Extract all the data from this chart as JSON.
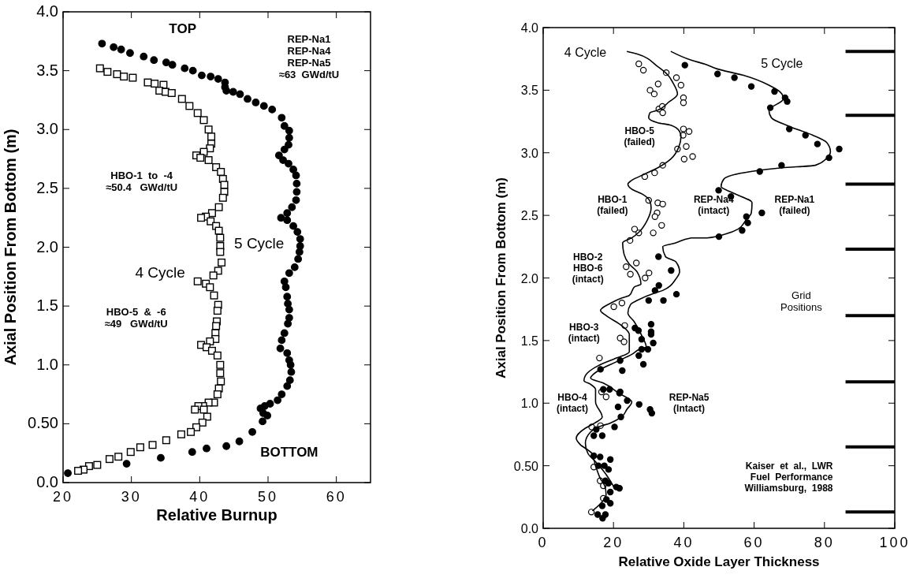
{
  "chart_data": [
    {
      "type": "scatter",
      "xlabel": "Relative Burnup",
      "ylabel": "Axial Position From Bottom (m)",
      "xlim": [
        20,
        65
      ],
      "xticks": [
        20,
        30,
        40,
        50,
        60
      ],
      "ylim": [
        0,
        4
      ],
      "yticks": [
        {
          "value": 0,
          "label": "0.0"
        },
        {
          "value": 0.5,
          "label": "0.50"
        },
        {
          "value": 1,
          "label": "1.0"
        },
        1.5,
        {
          "value": 2,
          "label": "2.0"
        },
        2.5,
        {
          "value": 3,
          "label": "3.0"
        },
        3.5,
        {
          "value": 4,
          "label": "4.0"
        }
      ],
      "annotations": [
        "TOP",
        "REP-Na1\nREP-Na4\nREP-Na5\n≈63  GWd/tU",
        "HBO-1  to  -4\n≈50.4   GWd/tU",
        "HBO-5  &  -6\n≈49   GWd/tU",
        "BOTTOM"
      ],
      "series": [
        {
          "name": "5 Cycle",
          "color": "#000000",
          "marker": "circle",
          "x": [
            25.7,
            27.4,
            28.5,
            29.8,
            31.8,
            33.3,
            35.1,
            36.0,
            37.8,
            39.0,
            40.3,
            41.6,
            42.7,
            43.7,
            43.7,
            43.9,
            44.9,
            45.9,
            47.0,
            48.2,
            49.4,
            50.6,
            52.0,
            52.4,
            53.1,
            53.1,
            53.0,
            52.4,
            51.6,
            52.2,
            53.0,
            53.7,
            54.1,
            54.2,
            54.2,
            54.1,
            53.5,
            52.8,
            51.9,
            52.8,
            53.7,
            54.3,
            54.7,
            54.7,
            54.6,
            54.4,
            53.9,
            53.1,
            52.4,
            52.6,
            52.8,
            52.9,
            53.1,
            53.1,
            52.9,
            52.4,
            52.0,
            51.8,
            52.8,
            53.1,
            53.3,
            53.4,
            53.2,
            52.8,
            52.0,
            51.4,
            50.3,
            49.5,
            48.9,
            49.3,
            49.9,
            49.2,
            47.7,
            45.8,
            43.9,
            41.0,
            38.9,
            34.3,
            29.3,
            20.7
          ],
          "values": [
            3.73,
            3.7,
            3.68,
            3.65,
            3.62,
            3.59,
            3.57,
            3.55,
            3.52,
            3.5,
            3.46,
            3.45,
            3.43,
            3.4,
            3.36,
            3.33,
            3.32,
            3.3,
            3.26,
            3.23,
            3.2,
            3.17,
            3.1,
            3.03,
            2.99,
            2.93,
            2.87,
            2.83,
            2.78,
            2.74,
            2.71,
            2.66,
            2.61,
            2.54,
            2.47,
            2.4,
            2.34,
            2.29,
            2.25,
            2.23,
            2.18,
            2.13,
            2.07,
            2.01,
            1.96,
            1.9,
            1.83,
            1.78,
            1.71,
            1.66,
            1.58,
            1.52,
            1.47,
            1.4,
            1.35,
            1.27,
            1.21,
            1.14,
            1.1,
            1.04,
            1.0,
            0.94,
            0.87,
            0.82,
            0.75,
            0.7,
            0.67,
            0.65,
            0.63,
            0.59,
            0.57,
            0.52,
            0.43,
            0.35,
            0.31,
            0.29,
            0.26,
            0.21,
            0.16,
            0.08
          ]
        },
        {
          "name": "4 Cycle",
          "color": "#000000",
          "marker": "square",
          "x": [
            25.4,
            26.5,
            27.9,
            28.9,
            30.2,
            32.4,
            33.4,
            34.7,
            34.1,
            35.0,
            35.9,
            37.4,
            38.5,
            39.7,
            40.6,
            41.3,
            41.7,
            41.7,
            41.5,
            40.6,
            39.5,
            40.1,
            41.3,
            42.4,
            43.1,
            43.4,
            43.6,
            43.6,
            43.4,
            42.8,
            41.8,
            40.9,
            40.2,
            41.6,
            42.4,
            42.8,
            43.0,
            43.0,
            43.0,
            43.2,
            42.7,
            42.0,
            39.7,
            40.9,
            41.5,
            42.1,
            42.7,
            42.6,
            42.5,
            42.4,
            42.3,
            42.3,
            41.5,
            40.2,
            41.0,
            41.8,
            42.6,
            43.0,
            43.0,
            43.1,
            42.8,
            42.6,
            42.1,
            41.3,
            40.5,
            39.8,
            39.3,
            40.6,
            41.1,
            40.4,
            39.5,
            38.7,
            37.3,
            35.1,
            33.1,
            31.3,
            29.9,
            28.1,
            26.8,
            25.0,
            23.8,
            23.0,
            22.2
          ],
          "values": [
            3.52,
            3.49,
            3.47,
            3.45,
            3.44,
            3.4,
            3.39,
            3.38,
            3.33,
            3.32,
            3.31,
            3.26,
            3.2,
            3.14,
            3.08,
            3.0,
            2.94,
            2.88,
            2.84,
            2.81,
            2.78,
            2.76,
            2.74,
            2.68,
            2.64,
            2.58,
            2.53,
            2.47,
            2.42,
            2.34,
            2.29,
            2.26,
            2.25,
            2.22,
            2.18,
            2.14,
            2.08,
            2.01,
            1.96,
            1.87,
            1.8,
            1.76,
            1.71,
            1.69,
            1.66,
            1.59,
            1.51,
            1.46,
            1.37,
            1.33,
            1.27,
            1.22,
            1.2,
            1.17,
            1.15,
            1.12,
            1.08,
            1.0,
            0.93,
            0.86,
            0.8,
            0.75,
            0.68,
            0.68,
            0.65,
            0.65,
            0.62,
            0.62,
            0.56,
            0.51,
            0.47,
            0.43,
            0.41,
            0.36,
            0.32,
            0.3,
            0.26,
            0.22,
            0.2,
            0.15,
            0.14,
            0.11,
            0.1
          ]
        }
      ]
    },
    {
      "type": "scatter",
      "xlabel": "Relative Oxide Layer Thickness",
      "ylabel": "Axial Position From Bottom (m)",
      "xlim": [
        0,
        100
      ],
      "xticks": [
        0,
        20,
        40,
        60,
        80,
        100
      ],
      "ylim": [
        0,
        4
      ],
      "yticks": [
        {
          "value": 0,
          "label": "0.0"
        },
        {
          "value": 0.5,
          "label": "0.50"
        },
        {
          "value": 1,
          "label": "1.0"
        },
        1.5,
        {
          "value": 2,
          "label": "2.0"
        },
        2.5,
        {
          "value": 3,
          "label": "3.0"
        },
        3.5,
        {
          "value": 4,
          "label": "4.0"
        }
      ],
      "annotations": [
        "HBO-5\n(failed)",
        "HBO-1\n(failed)",
        "REP-Na4\n(intact)",
        "REP-Na1\n(failed)",
        "HBO-2\nHBO-6\n(intact)",
        "HBO-3\n(intact)",
        "HBO-4\n(intact)",
        "REP-Na5\n(Intact)",
        "Grid\nPositions",
        "Kaiser  et  al.,  LWR\nFuel  Performance\nWilliamsburg,  1988"
      ],
      "ref_lines": [
        {
          "axis": "y",
          "value": 3.81
        },
        {
          "axis": "y",
          "value": 3.3
        },
        {
          "axis": "y",
          "value": 2.75
        },
        {
          "axis": "y",
          "value": 2.23
        },
        {
          "axis": "y",
          "value": 1.7
        },
        {
          "axis": "y",
          "value": 1.17
        },
        {
          "axis": "y",
          "value": 0.65
        },
        {
          "axis": "y",
          "value": 0.13
        }
      ],
      "series": [
        {
          "color": "#000000",
          "marker": "circle",
          "x": [
            27.2,
            28.5,
            35.0,
            37.9,
            39.2,
            32.7,
            30.4,
            31.6,
            39.9,
            39.9,
            32.9,
            33.9,
            34.0,
            39.9,
            41.5,
            39.8,
            38.2,
            40.7,
            40.1,
            42.5,
            34.0,
            31.7,
            28.9,
            30.0,
            32.6,
            34.0,
            32.4,
            31.8,
            33.7,
            26.0,
            27.2,
            31.3,
            24.7,
            26.5,
            23.6,
            24.8,
            29.0,
            30.1,
            20.1,
            22.4,
            23.2,
            21.9,
            23.0,
            16.0,
            16.6,
            17.9,
            13.8,
            16.3,
            14.4,
            16.2,
            17.1,
            17.1,
            13.7
          ],
          "values": [
            3.71,
            3.66,
            3.64,
            3.6,
            3.54,
            3.55,
            3.5,
            3.47,
            3.44,
            3.4,
            3.35,
            3.37,
            3.32,
            3.19,
            3.17,
            3.14,
            3.03,
            3.05,
            2.95,
            2.97,
            2.9,
            2.84,
            2.81,
            2.62,
            2.6,
            2.59,
            2.52,
            2.49,
            2.42,
            2.39,
            2.36,
            2.36,
            2.3,
            2.12,
            2.09,
            2.03,
            2.0,
            2.04,
            1.77,
            1.8,
            1.62,
            1.52,
            1.49,
            1.36,
            1.09,
            1.05,
            0.81,
            0.82,
            0.49,
            0.38,
            0.34,
            0.24,
            0.13
          ]
        },
        {
          "color": "#000000",
          "marker": "circle",
          "x": [
            40.3,
            49.6,
            54.4,
            59.2,
            65.8,
            68.8,
            69.4,
            64.6,
            70.0,
            74.6,
            78.0,
            84.2,
            81.3,
            67.8,
            61.6,
            49.9,
            53.4,
            57.8,
            58.2,
            56.6,
            50.0,
            62.2,
            32.8,
            36.4,
            32.9,
            31.8,
            37.9,
            30.0,
            34.2,
            30.7,
            30.7,
            30.7,
            26.1,
            27.1,
            28.0,
            31.3,
            28.0,
            29.8,
            27.2,
            28.5,
            21.9,
            16.3,
            22.5,
            17.1,
            18.9,
            21.7,
            21.9,
            23.9,
            27.3,
            21.3,
            30.4,
            30.9,
            22.1,
            20.3,
            15.1,
            14.4,
            16.8,
            14.4,
            16.2,
            19.1,
            15.7,
            17.4,
            18.6,
            17.7,
            18.6,
            20.8,
            21.7,
            19.1,
            18.0,
            19.1,
            16.8,
            15.5,
            17.7,
            16.9
          ],
          "values": [
            3.7,
            3.63,
            3.6,
            3.53,
            3.49,
            3.44,
            3.41,
            3.36,
            3.19,
            3.14,
            3.07,
            3.03,
            2.96,
            2.9,
            2.85,
            2.7,
            2.65,
            2.49,
            2.44,
            2.38,
            2.33,
            2.52,
            2.17,
            2.06,
            1.94,
            1.9,
            1.87,
            1.82,
            1.82,
            1.63,
            1.57,
            1.55,
            1.6,
            1.58,
            1.51,
            1.48,
            1.43,
            1.43,
            1.38,
            1.31,
            1.34,
            1.27,
            1.26,
            1.11,
            1.11,
            1.08,
            1.09,
            1.02,
            0.99,
            0.97,
            0.95,
            0.92,
            0.89,
            0.81,
            0.79,
            0.74,
            0.74,
            0.58,
            0.57,
            0.55,
            0.5,
            0.5,
            0.47,
            0.38,
            0.36,
            0.33,
            0.32,
            0.29,
            0.23,
            0.2,
            0.18,
            0.11,
            0.11,
            0.08
          ]
        },
        {
          "name": "4 Cycle",
          "type": "line",
          "color": "#000000",
          "marker": "none",
          "x": [
            23.8,
            26.6,
            32.5,
            35.5,
            36.9,
            38.2,
            35.5,
            32.6,
            30.4,
            30.0,
            32.6,
            36.3,
            38.8,
            39.2,
            38.5,
            36.3,
            32.6,
            28.9,
            25.2,
            24.1,
            25.2,
            28.2,
            30.4,
            30.7,
            29.6,
            27.4,
            25.2,
            22.6,
            23.0,
            24.5,
            26.7,
            27.8,
            26.0,
            24.5,
            22.3,
            19.3,
            16.3,
            17.9,
            22.3,
            24.5,
            24.5,
            20.8,
            15.7,
            12.0,
            11.6,
            13.5,
            14.9,
            14.9,
            16.8,
            14.6,
            12.0,
            9.4,
            10.5,
            13.8,
            14.9,
            16.4,
            17.5,
            17.9,
            16.4,
            14.0
          ],
          "values": [
            3.81,
            3.79,
            3.69,
            3.62,
            3.56,
            3.47,
            3.4,
            3.34,
            3.32,
            3.28,
            3.24,
            3.22,
            3.17,
            3.13,
            3.04,
            2.95,
            2.88,
            2.83,
            2.78,
            2.75,
            2.71,
            2.67,
            2.61,
            2.56,
            2.46,
            2.37,
            2.32,
            2.28,
            2.19,
            2.11,
            2.05,
            1.95,
            1.93,
            1.86,
            1.84,
            1.8,
            1.74,
            1.7,
            1.62,
            1.55,
            1.41,
            1.36,
            1.3,
            1.22,
            1.18,
            1.15,
            1.11,
            1.01,
            0.89,
            0.84,
            0.8,
            0.72,
            0.67,
            0.6,
            0.5,
            0.39,
            0.34,
            0.27,
            0.2,
            0.14
          ]
        },
        {
          "name": "5 Cycle",
          "type": "line",
          "color": "#000000",
          "marker": "none",
          "x": [
            36.3,
            42.1,
            45.8,
            49.5,
            56.8,
            64.2,
            67.9,
            68.3,
            64.2,
            64.9,
            70.1,
            76.7,
            80.7,
            81.7,
            80.4,
            77.4,
            67.9,
            59.1,
            51.4,
            50.6,
            53.9,
            59.4,
            59.2,
            57.6,
            55.4,
            51.7,
            46.6,
            42.1,
            37.7,
            34.0,
            34.8,
            37.7,
            38.8,
            37.7,
            34.0,
            31.8,
            26.7,
            24.9,
            24.1,
            25.9,
            28.2,
            29.3,
            27.4,
            25.2,
            20.8,
            15.7,
            13.5,
            17.1,
            21.5,
            25.2,
            23.8,
            22.3,
            19.0,
            15.7,
            13.5,
            12.0,
            12.7,
            15.3,
            17.9,
            19.7,
            20.1
          ],
          "values": [
            3.81,
            3.74,
            3.71,
            3.67,
            3.62,
            3.54,
            3.47,
            3.43,
            3.34,
            3.28,
            3.21,
            3.14,
            3.08,
            3.01,
            2.95,
            2.9,
            2.88,
            2.85,
            2.79,
            2.73,
            2.68,
            2.6,
            2.52,
            2.46,
            2.39,
            2.35,
            2.32,
            2.32,
            2.28,
            2.25,
            2.17,
            2.13,
            2.05,
            1.99,
            1.9,
            1.88,
            1.82,
            1.79,
            1.72,
            1.65,
            1.53,
            1.45,
            1.43,
            1.39,
            1.33,
            1.26,
            1.2,
            1.16,
            1.08,
            1.01,
            0.95,
            0.89,
            0.84,
            0.81,
            0.77,
            0.68,
            0.6,
            0.52,
            0.43,
            0.35,
            0.33
          ]
        }
      ]
    }
  ]
}
